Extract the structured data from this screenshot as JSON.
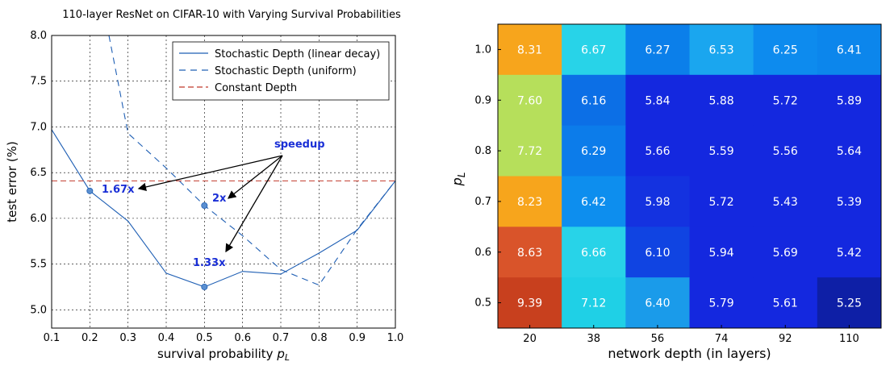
{
  "chart_data": [
    {
      "type": "line",
      "title": "110-layer ResNet on CIFAR-10 with Varying Survival Probabilities",
      "xlabel": "survival probability p_L",
      "xlabel_main": "survival probability ",
      "xlabel_var": "p",
      "xlabel_sub": "L",
      "ylabel": "test error (%)",
      "xlim": [
        0.1,
        1.0
      ],
      "ylim": [
        4.8,
        8.0
      ],
      "xticks": [
        "0.1",
        "0.2",
        "0.3",
        "0.4",
        "0.5",
        "0.6",
        "0.7",
        "0.8",
        "0.9",
        "1.0"
      ],
      "yticks": [
        "5.0",
        "5.5",
        "6.0",
        "6.5",
        "7.0",
        "7.5",
        "8.0"
      ],
      "grid": true,
      "legend_position": "top-right",
      "series": [
        {
          "name": "Stochastic Depth (linear decay)",
          "style": "solid",
          "color": "#1f5fb4",
          "x": [
            0.1,
            0.2,
            0.3,
            0.4,
            0.5,
            0.6,
            0.7,
            0.8,
            0.9,
            1.0
          ],
          "y": [
            6.97,
            6.3,
            5.97,
            5.4,
            5.25,
            5.42,
            5.39,
            5.62,
            5.87,
            6.41
          ]
        },
        {
          "name": "Stochastic Depth (uniform)",
          "style": "dashed",
          "color": "#1f5fb4",
          "x": [
            0.25,
            0.3,
            0.4,
            0.5,
            0.6,
            0.7,
            0.8,
            0.9,
            1.0
          ],
          "y": [
            8.0,
            6.93,
            6.55,
            6.14,
            5.81,
            5.44,
            5.27,
            5.88,
            6.41
          ]
        },
        {
          "name": "Constant Depth",
          "style": "dashed",
          "color": "#c0392b",
          "x": [
            0.1,
            1.0
          ],
          "y": [
            6.41,
            6.41
          ]
        }
      ],
      "markers": [
        {
          "x": 0.2,
          "y": 6.3
        },
        {
          "x": 0.5,
          "y": 6.14
        },
        {
          "x": 0.5,
          "y": 5.25
        }
      ],
      "annotations": {
        "speedup": "speedup",
        "labels": [
          "1.67x",
          "2x",
          "1.33x"
        ]
      }
    },
    {
      "type": "heatmap",
      "xlabel": "network depth (in layers)",
      "ylabel_var": "p",
      "ylabel_sub": "L",
      "x_categories": [
        "20",
        "38",
        "56",
        "74",
        "92",
        "110"
      ],
      "y_categories": [
        "1.0",
        "0.9",
        "0.8",
        "0.7",
        "0.6",
        "0.5"
      ],
      "values": [
        [
          "8.31",
          "6.67",
          "6.27",
          "6.53",
          "6.25",
          "6.41"
        ],
        [
          "7.60",
          "6.16",
          "5.84",
          "5.88",
          "5.72",
          "5.89"
        ],
        [
          "7.72",
          "6.29",
          "5.66",
          "5.59",
          "5.56",
          "5.64"
        ],
        [
          "8.23",
          "6.42",
          "5.98",
          "5.72",
          "5.43",
          "5.39"
        ],
        [
          "8.63",
          "6.66",
          "6.10",
          "5.94",
          "5.69",
          "5.42"
        ],
        [
          "9.39",
          "7.12",
          "6.40",
          "5.79",
          "5.61",
          "5.25"
        ]
      ],
      "colors": [
        [
          "#f7a51c",
          "#28d3e8",
          "#0b7fea",
          "#1aa6ef",
          "#0d8bee",
          "#0c86ec"
        ],
        [
          "#b6df5b",
          "#0c6fe6",
          "#1428df",
          "#1428df",
          "#1428df",
          "#1428df"
        ],
        [
          "#b6df5b",
          "#0c7cea",
          "#1428df",
          "#1428df",
          "#1428df",
          "#1428df"
        ],
        [
          "#f7a51c",
          "#0d8eee",
          "#1432e0",
          "#1428df",
          "#1428df",
          "#1428df"
        ],
        [
          "#d9542a",
          "#28d3e8",
          "#1044e2",
          "#1428df",
          "#1428df",
          "#1428df"
        ],
        [
          "#c8401e",
          "#1fd0e6",
          "#1a9bea",
          "#1428df",
          "#1428df",
          "#0e1fa6"
        ]
      ]
    }
  ]
}
